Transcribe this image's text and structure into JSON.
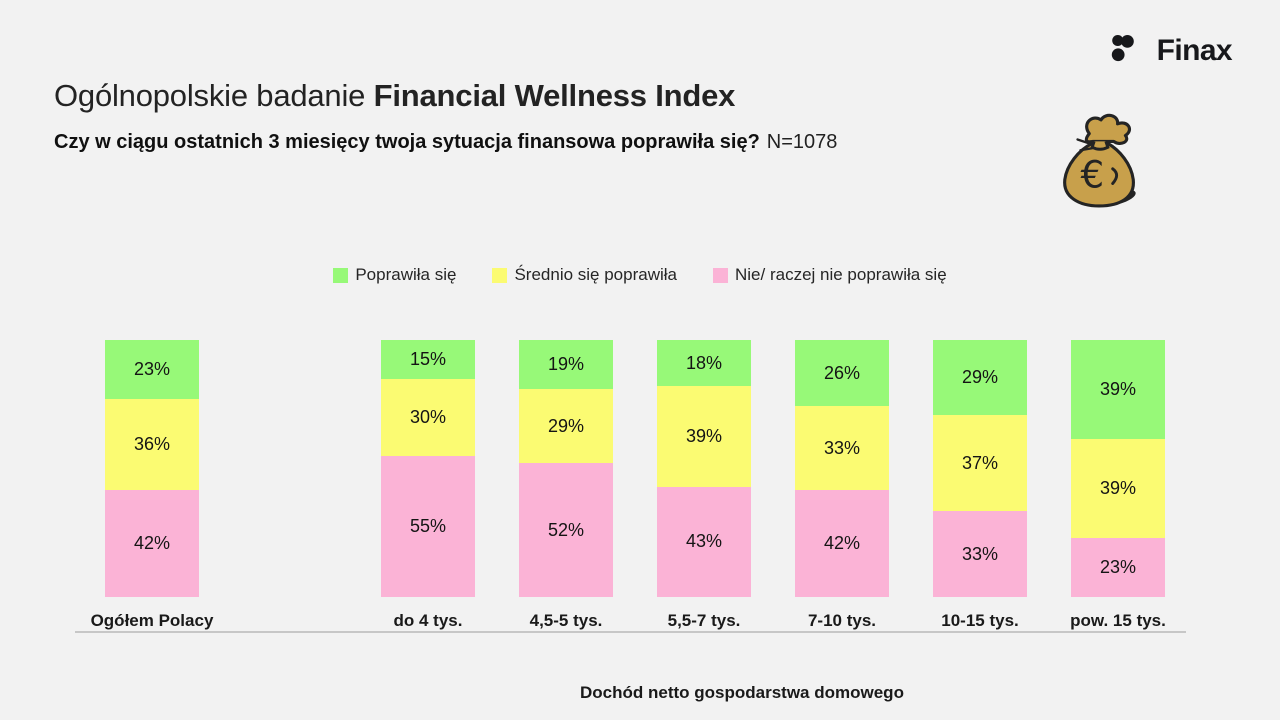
{
  "header": {
    "title_prefix": "Ogólnopolskie badanie ",
    "title_emphasis": "Financial Wellness Index",
    "question_bold": "Czy w ciągu ostatnich 3 miesięcy twoja sytuacja finansowa poprawiła się?",
    "sample_size": "N=1078",
    "brand": "Finax"
  },
  "colors": {
    "background": "#f2f2f2",
    "axis_line": "#c7c7c7",
    "money_bag_fill": "#c8a04b",
    "money_bag_outline": "#242424",
    "logo_ink": "#17181b"
  },
  "chart_data": {
    "type": "bar",
    "subtype": "100%-stacked-column",
    "categories": [
      "Ogółem Polacy",
      "do 4 tys.",
      "4,5-5 tys.",
      "5,5-7 tys.",
      "7-10 tys.",
      "10-15 tys.",
      "pow. 15 tys."
    ],
    "series": [
      {
        "name": "Poprawiła się",
        "color": "#97f978",
        "values": [
          23,
          15,
          19,
          18,
          26,
          29,
          39
        ]
      },
      {
        "name": "Średnio się poprawiła",
        "color": "#fbfb72",
        "values": [
          36,
          30,
          29,
          39,
          33,
          37,
          39
        ]
      },
      {
        "name": "Nie/ raczej nie poprawiła się",
        "color": "#fbb3d6",
        "values": [
          42,
          55,
          52,
          43,
          42,
          33,
          23
        ]
      }
    ],
    "value_suffix": "%",
    "xlabel": "Dochód netto gospodarstwa domowego",
    "ylim": [
      0,
      100
    ],
    "grid": false,
    "legend_position": "top-center",
    "gap_after_first": true
  }
}
